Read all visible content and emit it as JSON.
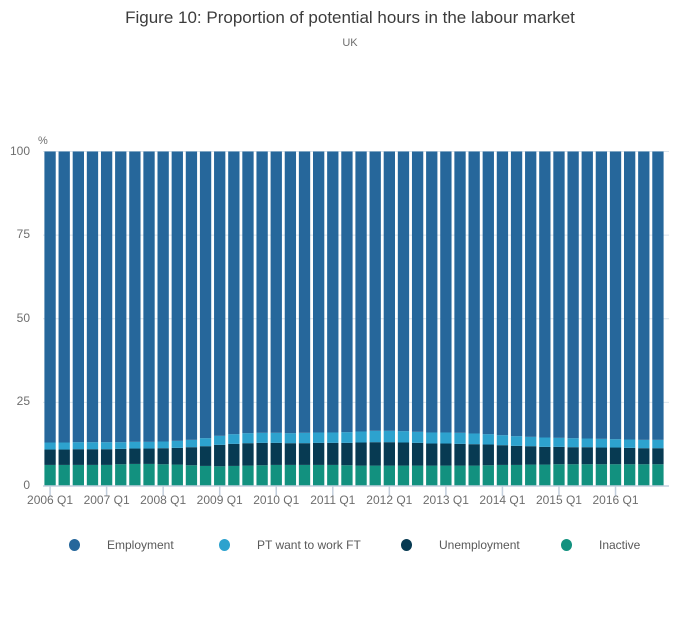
{
  "header": {
    "title": "Figure 10: Proportion of potential hours in the labour market",
    "subtitle": "UK"
  },
  "chart_data": {
    "type": "bar",
    "stacked": true,
    "title": "Figure 10: Proportion of potential hours in the labour market",
    "subtitle": "UK",
    "ylabel": "%",
    "xlabel": "",
    "ylim": [
      0,
      100
    ],
    "y_ticks": [
      0,
      25,
      50,
      75,
      100
    ],
    "grid": true,
    "legend_position": "bottom",
    "x": [
      "2006 Q1",
      "2006 Q2",
      "2006 Q3",
      "2006 Q4",
      "2007 Q1",
      "2007 Q2",
      "2007 Q3",
      "2007 Q4",
      "2008 Q1",
      "2008 Q2",
      "2008 Q3",
      "2008 Q4",
      "2009 Q1",
      "2009 Q2",
      "2009 Q3",
      "2009 Q4",
      "2010 Q1",
      "2010 Q2",
      "2010 Q3",
      "2010 Q4",
      "2011 Q1",
      "2011 Q2",
      "2011 Q3",
      "2011 Q4",
      "2012 Q1",
      "2012 Q2",
      "2012 Q3",
      "2012 Q4",
      "2013 Q1",
      "2013 Q2",
      "2013 Q3",
      "2013 Q4",
      "2014 Q1",
      "2014 Q2",
      "2014 Q3",
      "2014 Q4",
      "2015 Q1",
      "2015 Q2",
      "2015 Q3",
      "2015 Q4",
      "2016 Q1",
      "2016 Q2",
      "2016 Q3",
      "2016 Q4"
    ],
    "x_tick_labels": [
      "2006 Q1",
      "2007 Q1",
      "2008 Q1",
      "2009 Q1",
      "2010 Q1",
      "2011 Q1",
      "2012 Q1",
      "2013 Q1",
      "2014 Q1",
      "2015 Q1",
      "2016 Q1"
    ],
    "stack_order_bottom_to_top": [
      "Inactive",
      "Unemployment",
      "PT want to work FT",
      "Employment"
    ],
    "series": [
      {
        "name": "Employment",
        "color": "#26679b",
        "values": [
          87.0,
          87.0,
          86.9,
          86.9,
          86.9,
          86.9,
          86.8,
          86.8,
          86.7,
          86.5,
          86.2,
          85.7,
          85.0,
          84.5,
          84.2,
          84.1,
          84.1,
          84.2,
          84.1,
          84.0,
          84.0,
          83.9,
          83.7,
          83.5,
          83.5,
          83.6,
          83.8,
          84.0,
          84.0,
          84.1,
          84.3,
          84.5,
          84.8,
          85.1,
          85.3,
          85.5,
          85.6,
          85.7,
          85.8,
          85.9,
          86.0,
          86.1,
          86.2,
          86.2
        ]
      },
      {
        "name": "PT want to work FT",
        "color": "#2da2ce",
        "values": [
          2.1,
          2.1,
          2.1,
          2.1,
          2.1,
          2.0,
          2.0,
          2.0,
          2.0,
          2.1,
          2.2,
          2.4,
          2.7,
          2.9,
          3.0,
          3.0,
          3.0,
          3.0,
          3.1,
          3.1,
          3.1,
          3.2,
          3.3,
          3.4,
          3.4,
          3.4,
          3.3,
          3.3,
          3.3,
          3.3,
          3.2,
          3.1,
          3.0,
          2.9,
          2.8,
          2.8,
          2.7,
          2.7,
          2.6,
          2.6,
          2.5,
          2.5,
          2.5,
          2.5
        ]
      },
      {
        "name": "Unemployment",
        "color": "#073a52",
        "values": [
          4.6,
          4.6,
          4.7,
          4.7,
          4.7,
          4.6,
          4.6,
          4.6,
          4.8,
          5.0,
          5.4,
          5.9,
          6.4,
          6.6,
          6.7,
          6.7,
          6.6,
          6.5,
          6.5,
          6.6,
          6.6,
          6.7,
          6.9,
          7.0,
          7.0,
          6.9,
          6.8,
          6.6,
          6.6,
          6.5,
          6.4,
          6.2,
          5.9,
          5.7,
          5.5,
          5.3,
          5.2,
          5.1,
          5.1,
          5.0,
          5.0,
          4.9,
          4.8,
          4.8
        ]
      },
      {
        "name": "Inactive",
        "color": "#12917f",
        "values": [
          6.3,
          6.3,
          6.3,
          6.3,
          6.3,
          6.5,
          6.6,
          6.6,
          6.5,
          6.4,
          6.2,
          6.0,
          5.9,
          6.0,
          6.1,
          6.2,
          6.3,
          6.3,
          6.3,
          6.3,
          6.3,
          6.2,
          6.1,
          6.1,
          6.1,
          6.1,
          6.1,
          6.1,
          6.1,
          6.1,
          6.1,
          6.2,
          6.3,
          6.3,
          6.4,
          6.4,
          6.5,
          6.5,
          6.5,
          6.5,
          6.5,
          6.5,
          6.5,
          6.5
        ]
      }
    ],
    "axis_color": "#c3cfdd",
    "grid_color": "#dbe4ec"
  }
}
